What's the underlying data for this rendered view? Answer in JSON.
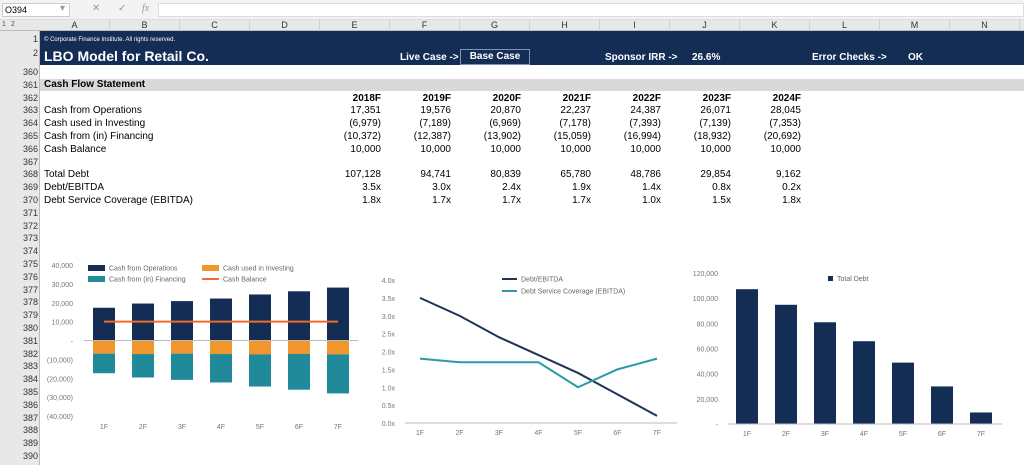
{
  "formula_bar": {
    "name_box": "O394",
    "formula": ""
  },
  "columns": [
    "A",
    "B",
    "C",
    "D",
    "E",
    "F",
    "G",
    "H",
    "I",
    "J",
    "K",
    "L",
    "M",
    "N"
  ],
  "outline_levels": [
    "1",
    "2"
  ],
  "header": {
    "copyright": "© Corporate Finance Institute. All rights reserved.",
    "title": "LBO Model for Retail Co.",
    "live_case_label": "Live Case ->",
    "live_case_value": "Base Case",
    "irr_label": "Sponsor IRR ->",
    "irr_value": "26.6%",
    "error_label": "Error Checks ->",
    "error_value": "OK",
    "brand_color": "#142d55"
  },
  "rows": {
    "header_rows": [
      "1",
      "2"
    ],
    "numbers": [
      "360",
      "361",
      "362",
      "363",
      "364",
      "365",
      "366",
      "367",
      "368",
      "369",
      "370",
      "371",
      "372",
      "373",
      "374",
      "375",
      "376",
      "377",
      "378",
      "379",
      "380",
      "381",
      "382",
      "383",
      "384",
      "385",
      "386",
      "387",
      "388",
      "389",
      "390"
    ]
  },
  "section_title": "Cash Flow Statement",
  "years": [
    "2018F",
    "2019F",
    "2020F",
    "2021F",
    "2022F",
    "2023F",
    "2024F"
  ],
  "table": [
    {
      "row": 1,
      "label": "Cash from Operations",
      "values": [
        "17,351",
        "19,576",
        "20,870",
        "22,237",
        "24,387",
        "26,071",
        "28,045"
      ]
    },
    {
      "row": 2,
      "label": "Cash used in Investing",
      "values": [
        "(6,979)",
        "(7,189)",
        "(6,969)",
        "(7,178)",
        "(7,393)",
        "(7,139)",
        "(7,353)"
      ]
    },
    {
      "row": 3,
      "label": "Cash from (in) Financing",
      "values": [
        "(10,372)",
        "(12,387)",
        "(13,902)",
        "(15,059)",
        "(16,994)",
        "(18,932)",
        "(20,692)"
      ]
    },
    {
      "row": 4,
      "label": "Cash Balance",
      "values": [
        "10,000",
        "10,000",
        "10,000",
        "10,000",
        "10,000",
        "10,000",
        "10,000"
      ]
    },
    {
      "row": 6,
      "label": "Total Debt",
      "values": [
        "107,128",
        "94,741",
        "80,839",
        "65,780",
        "48,786",
        "29,854",
        "9,162"
      ]
    },
    {
      "row": 7,
      "label": "Debt/EBITDA",
      "values": [
        "3.5x",
        "3.0x",
        "2.4x",
        "1.9x",
        "1.4x",
        "0.8x",
        "0.2x"
      ]
    },
    {
      "row": 8,
      "label": "Debt Service Coverage (EBITDA)",
      "values": [
        "1.8x",
        "1.7x",
        "1.7x",
        "1.7x",
        "1.0x",
        "1.5x",
        "1.8x"
      ]
    }
  ],
  "chart_data": [
    {
      "type": "bar",
      "stacked": true,
      "categories": [
        "1F",
        "2F",
        "3F",
        "4F",
        "5F",
        "6F",
        "7F"
      ],
      "yticks": [
        "40,000",
        "30,000",
        "20,000",
        "10,000",
        "-",
        "(10,000)",
        "(20,000)",
        "(30,000)",
        "(40,000)"
      ],
      "ylim": [
        -40000,
        40000
      ],
      "legend": "top",
      "series": [
        {
          "name": "Cash from Operations",
          "kind": "bar",
          "color": "#142d55",
          "values": [
            17351,
            19576,
            20870,
            22237,
            24387,
            26071,
            28045
          ]
        },
        {
          "name": "Cash used in Investing",
          "kind": "bar",
          "color": "#f0962d",
          "values": [
            -6979,
            -7189,
            -6969,
            -7178,
            -7393,
            -7139,
            -7353
          ]
        },
        {
          "name": "Cash from (in) Financing",
          "kind": "bar",
          "color": "#20899a",
          "values": [
            -10372,
            -12387,
            -13902,
            -15059,
            -16994,
            -18932,
            -20692
          ]
        },
        {
          "name": "Cash Balance",
          "kind": "line",
          "color": "#f26b2a",
          "values": [
            10000,
            10000,
            10000,
            10000,
            10000,
            10000,
            10000
          ]
        }
      ]
    },
    {
      "type": "line",
      "categories": [
        "1F",
        "2F",
        "3F",
        "4F",
        "5F",
        "6F",
        "7F"
      ],
      "yticks": [
        "4.0x",
        "3.5x",
        "3.0x",
        "2.5x",
        "2.0x",
        "1.5x",
        "1.0x",
        "0.5x",
        "0.0x"
      ],
      "ylim": [
        0,
        4
      ],
      "legend": "top",
      "series": [
        {
          "name": "Debt/EBITDA",
          "color": "#1f3358",
          "values": [
            3.5,
            3.0,
            2.4,
            1.9,
            1.4,
            0.8,
            0.2
          ]
        },
        {
          "name": "Debt Service Coverage (EBITDA)",
          "color": "#2a9aa6",
          "values": [
            1.8,
            1.7,
            1.7,
            1.7,
            1.0,
            1.5,
            1.8
          ]
        }
      ]
    },
    {
      "type": "bar",
      "categories": [
        "1F",
        "2F",
        "3F",
        "4F",
        "5F",
        "6F",
        "7F"
      ],
      "yticks": [
        "120,000",
        "100,000",
        "80,000",
        "60,000",
        "40,000",
        "20,000",
        "-"
      ],
      "ylim": [
        0,
        120000
      ],
      "legend": "top",
      "series": [
        {
          "name": "Total Debt",
          "color": "#142d55",
          "values": [
            107128,
            94741,
            80839,
            65780,
            48786,
            29854,
            9162
          ]
        }
      ]
    }
  ]
}
